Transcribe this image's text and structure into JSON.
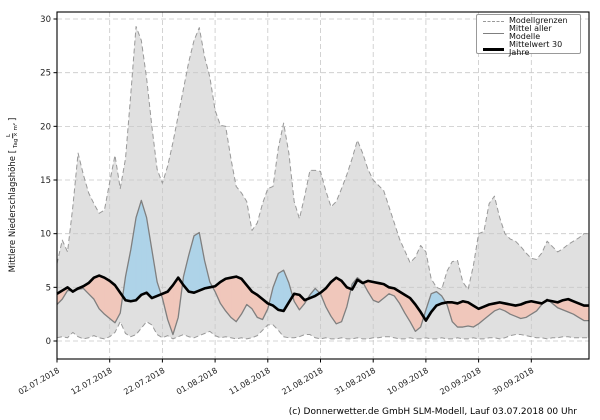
{
  "footer": "(c) Donnerwetter.de GmbH SLM-Modell, Lauf 03.07.2018 00 Uhr",
  "chart_data": {
    "type": "area",
    "title": "",
    "ylabel_prefix": "Mittlere Niederschlagshöhe [",
    "ylabel_unit_num": "L",
    "ylabel_unit_den": "Tag × m²",
    "ylabel_suffix": "]",
    "xlabel": "",
    "ylim": [
      0,
      31
    ],
    "grid": "dashed",
    "legend_position": "upper right",
    "legend_labels": [
      "Modellgrenzen",
      "Mittel aller Modelle",
      "Mittelwert 30 Jahre"
    ],
    "y_ticks": [
      0,
      5,
      10,
      15,
      20,
      25,
      30
    ],
    "x_days_from": "02.07.2018",
    "x_resolution_days": 1,
    "x_tick_days": [
      0,
      10,
      20,
      30,
      40,
      50,
      60,
      70,
      80,
      90
    ],
    "x_tick_labels": [
      "02.07.2018",
      "12.07.2018",
      "22.07.2018",
      "01.08.2018",
      "11.08.2018",
      "21.08.2018",
      "31.08.2018",
      "10.09.2018",
      "20.09.2018",
      "30.09.2018"
    ],
    "colors": {
      "envelope_fill": "#e0e0e0",
      "envelope_border": "#999999",
      "above_mean_fill": "#aed3e8",
      "below_mean_fill": "#f0c7bb",
      "model_mean_line": "#7f7f7f",
      "mean30_line": "#000000",
      "grid_line": "#c8c8c8",
      "frame": "#000000"
    },
    "series": [
      {
        "key": "max",
        "name": "Modellgrenzen (Maximum)",
        "values": [
          7.2,
          9.4,
          8.3,
          12.5,
          17.5,
          15.5,
          13.8,
          12.8,
          11.9,
          12.2,
          14.8,
          17.3,
          14.2,
          17.0,
          23.0,
          29.3,
          28.0,
          24.5,
          20.0,
          16.0,
          14.7,
          16.3,
          18.5,
          21.0,
          23.5,
          26.0,
          28.0,
          29.2,
          26.5,
          24.6,
          21.5,
          20.1,
          20.0,
          17.0,
          14.4,
          13.8,
          13.0,
          10.3,
          11.0,
          12.8,
          14.2,
          14.4,
          18.0,
          20.3,
          17.5,
          13.0,
          11.4,
          13.5,
          15.9,
          15.9,
          15.8,
          14.0,
          12.5,
          13.0,
          14.2,
          15.5,
          17.0,
          18.7,
          17.5,
          16.0,
          15.0,
          14.5,
          14.0,
          12.5,
          11.0,
          9.5,
          8.4,
          7.3,
          7.8,
          8.9,
          8.3,
          5.8,
          5.0,
          4.8,
          6.5,
          7.4,
          7.5,
          5.5,
          4.8,
          7.0,
          10.0,
          10.2,
          12.8,
          13.5,
          11.5,
          10.0,
          9.5,
          9.3,
          8.8,
          8.2,
          7.7,
          7.6,
          8.2,
          9.3,
          8.8,
          8.3,
          8.6,
          9.0,
          9.3,
          9.6,
          10.0
        ]
      },
      {
        "key": "min",
        "name": "Modellgrenzen (Minimum)",
        "values": [
          0.3,
          0.4,
          0.3,
          0.8,
          0.4,
          0.2,
          0.3,
          0.5,
          0.3,
          0.2,
          0.4,
          0.8,
          1.8,
          0.7,
          0.4,
          0.6,
          1.2,
          1.8,
          1.5,
          0.6,
          0.3,
          0.5,
          0.2,
          0.4,
          0.6,
          0.4,
          0.3,
          0.5,
          0.7,
          0.9,
          0.5,
          0.3,
          0.4,
          0.3,
          0.2,
          0.3,
          0.2,
          0.3,
          0.5,
          1.0,
          1.5,
          1.5,
          1.0,
          0.4,
          0.3,
          0.3,
          0.4,
          0.6,
          0.6,
          0.3,
          0.2,
          0.3,
          0.2,
          0.2,
          0.3,
          0.2,
          0.2,
          0.3,
          0.2,
          0.2,
          0.3,
          0.3,
          0.4,
          0.4,
          0.3,
          0.2,
          0.2,
          0.3,
          0.2,
          0.2,
          0.3,
          0.2,
          0.2,
          0.3,
          0.2,
          0.2,
          0.3,
          0.2,
          0.2,
          0.3,
          0.2,
          0.2,
          0.3,
          0.3,
          0.2,
          0.3,
          0.5,
          0.6,
          0.6,
          0.5,
          0.4,
          0.3,
          0.3,
          0.2,
          0.3,
          0.3,
          0.4,
          0.4,
          0.3,
          0.3,
          0.3
        ]
      },
      {
        "key": "model_mean",
        "name": "Mittel aller Modelle",
        "values": [
          3.4,
          3.9,
          4.7,
          4.7,
          4.8,
          4.9,
          4.4,
          3.9,
          3.0,
          2.5,
          2.1,
          1.7,
          2.6,
          6.0,
          8.5,
          11.5,
          13.1,
          11.5,
          8.5,
          5.5,
          4.0,
          2.0,
          0.6,
          2.2,
          6.0,
          8.0,
          9.8,
          10.1,
          7.5,
          5.5,
          4.6,
          3.5,
          2.8,
          2.2,
          1.8,
          2.5,
          3.4,
          3.0,
          2.2,
          2.0,
          3.0,
          5.0,
          6.3,
          6.6,
          5.4,
          3.7,
          2.9,
          3.5,
          4.3,
          4.9,
          4.4,
          3.2,
          2.3,
          1.6,
          1.8,
          3.2,
          5.3,
          5.9,
          5.5,
          4.6,
          3.8,
          3.6,
          4.0,
          4.4,
          4.2,
          3.5,
          2.6,
          1.8,
          0.9,
          1.3,
          2.9,
          4.4,
          4.6,
          4.2,
          3.4,
          1.8,
          1.3,
          1.3,
          1.4,
          1.3,
          1.6,
          2.0,
          2.4,
          2.8,
          3.0,
          2.8,
          2.5,
          2.3,
          2.1,
          2.2,
          2.5,
          2.8,
          3.4,
          3.9,
          3.5,
          3.1,
          2.9,
          2.7,
          2.5,
          2.2,
          1.9
        ]
      },
      {
        "key": "mean30",
        "name": "Mittelwert 30 Jahre",
        "values": [
          4.4,
          4.7,
          5.0,
          4.6,
          4.9,
          5.1,
          5.4,
          5.9,
          6.1,
          5.9,
          5.6,
          5.2,
          4.5,
          3.8,
          3.7,
          3.8,
          4.3,
          4.5,
          4.0,
          4.2,
          4.4,
          4.6,
          5.2,
          5.9,
          5.2,
          4.6,
          4.5,
          4.7,
          4.9,
          5.0,
          5.1,
          5.5,
          5.8,
          5.9,
          6.0,
          5.8,
          5.2,
          4.6,
          4.3,
          3.9,
          3.5,
          3.3,
          2.9,
          2.8,
          3.6,
          4.4,
          4.3,
          3.8,
          4.0,
          4.2,
          4.5,
          4.9,
          5.5,
          5.9,
          5.6,
          5.0,
          4.8,
          5.7,
          5.4,
          5.6,
          5.5,
          5.4,
          5.3,
          5.0,
          4.9,
          4.6,
          4.3,
          4.0,
          3.4,
          2.7,
          1.9,
          2.7,
          3.3,
          3.5,
          3.6,
          3.6,
          3.5,
          3.7,
          3.6,
          3.3,
          3.0,
          3.2,
          3.4,
          3.5,
          3.6,
          3.5,
          3.4,
          3.3,
          3.4,
          3.6,
          3.7,
          3.6,
          3.5,
          3.8,
          3.7,
          3.6,
          3.8,
          3.9,
          3.7,
          3.5,
          3.3
        ]
      }
    ]
  }
}
